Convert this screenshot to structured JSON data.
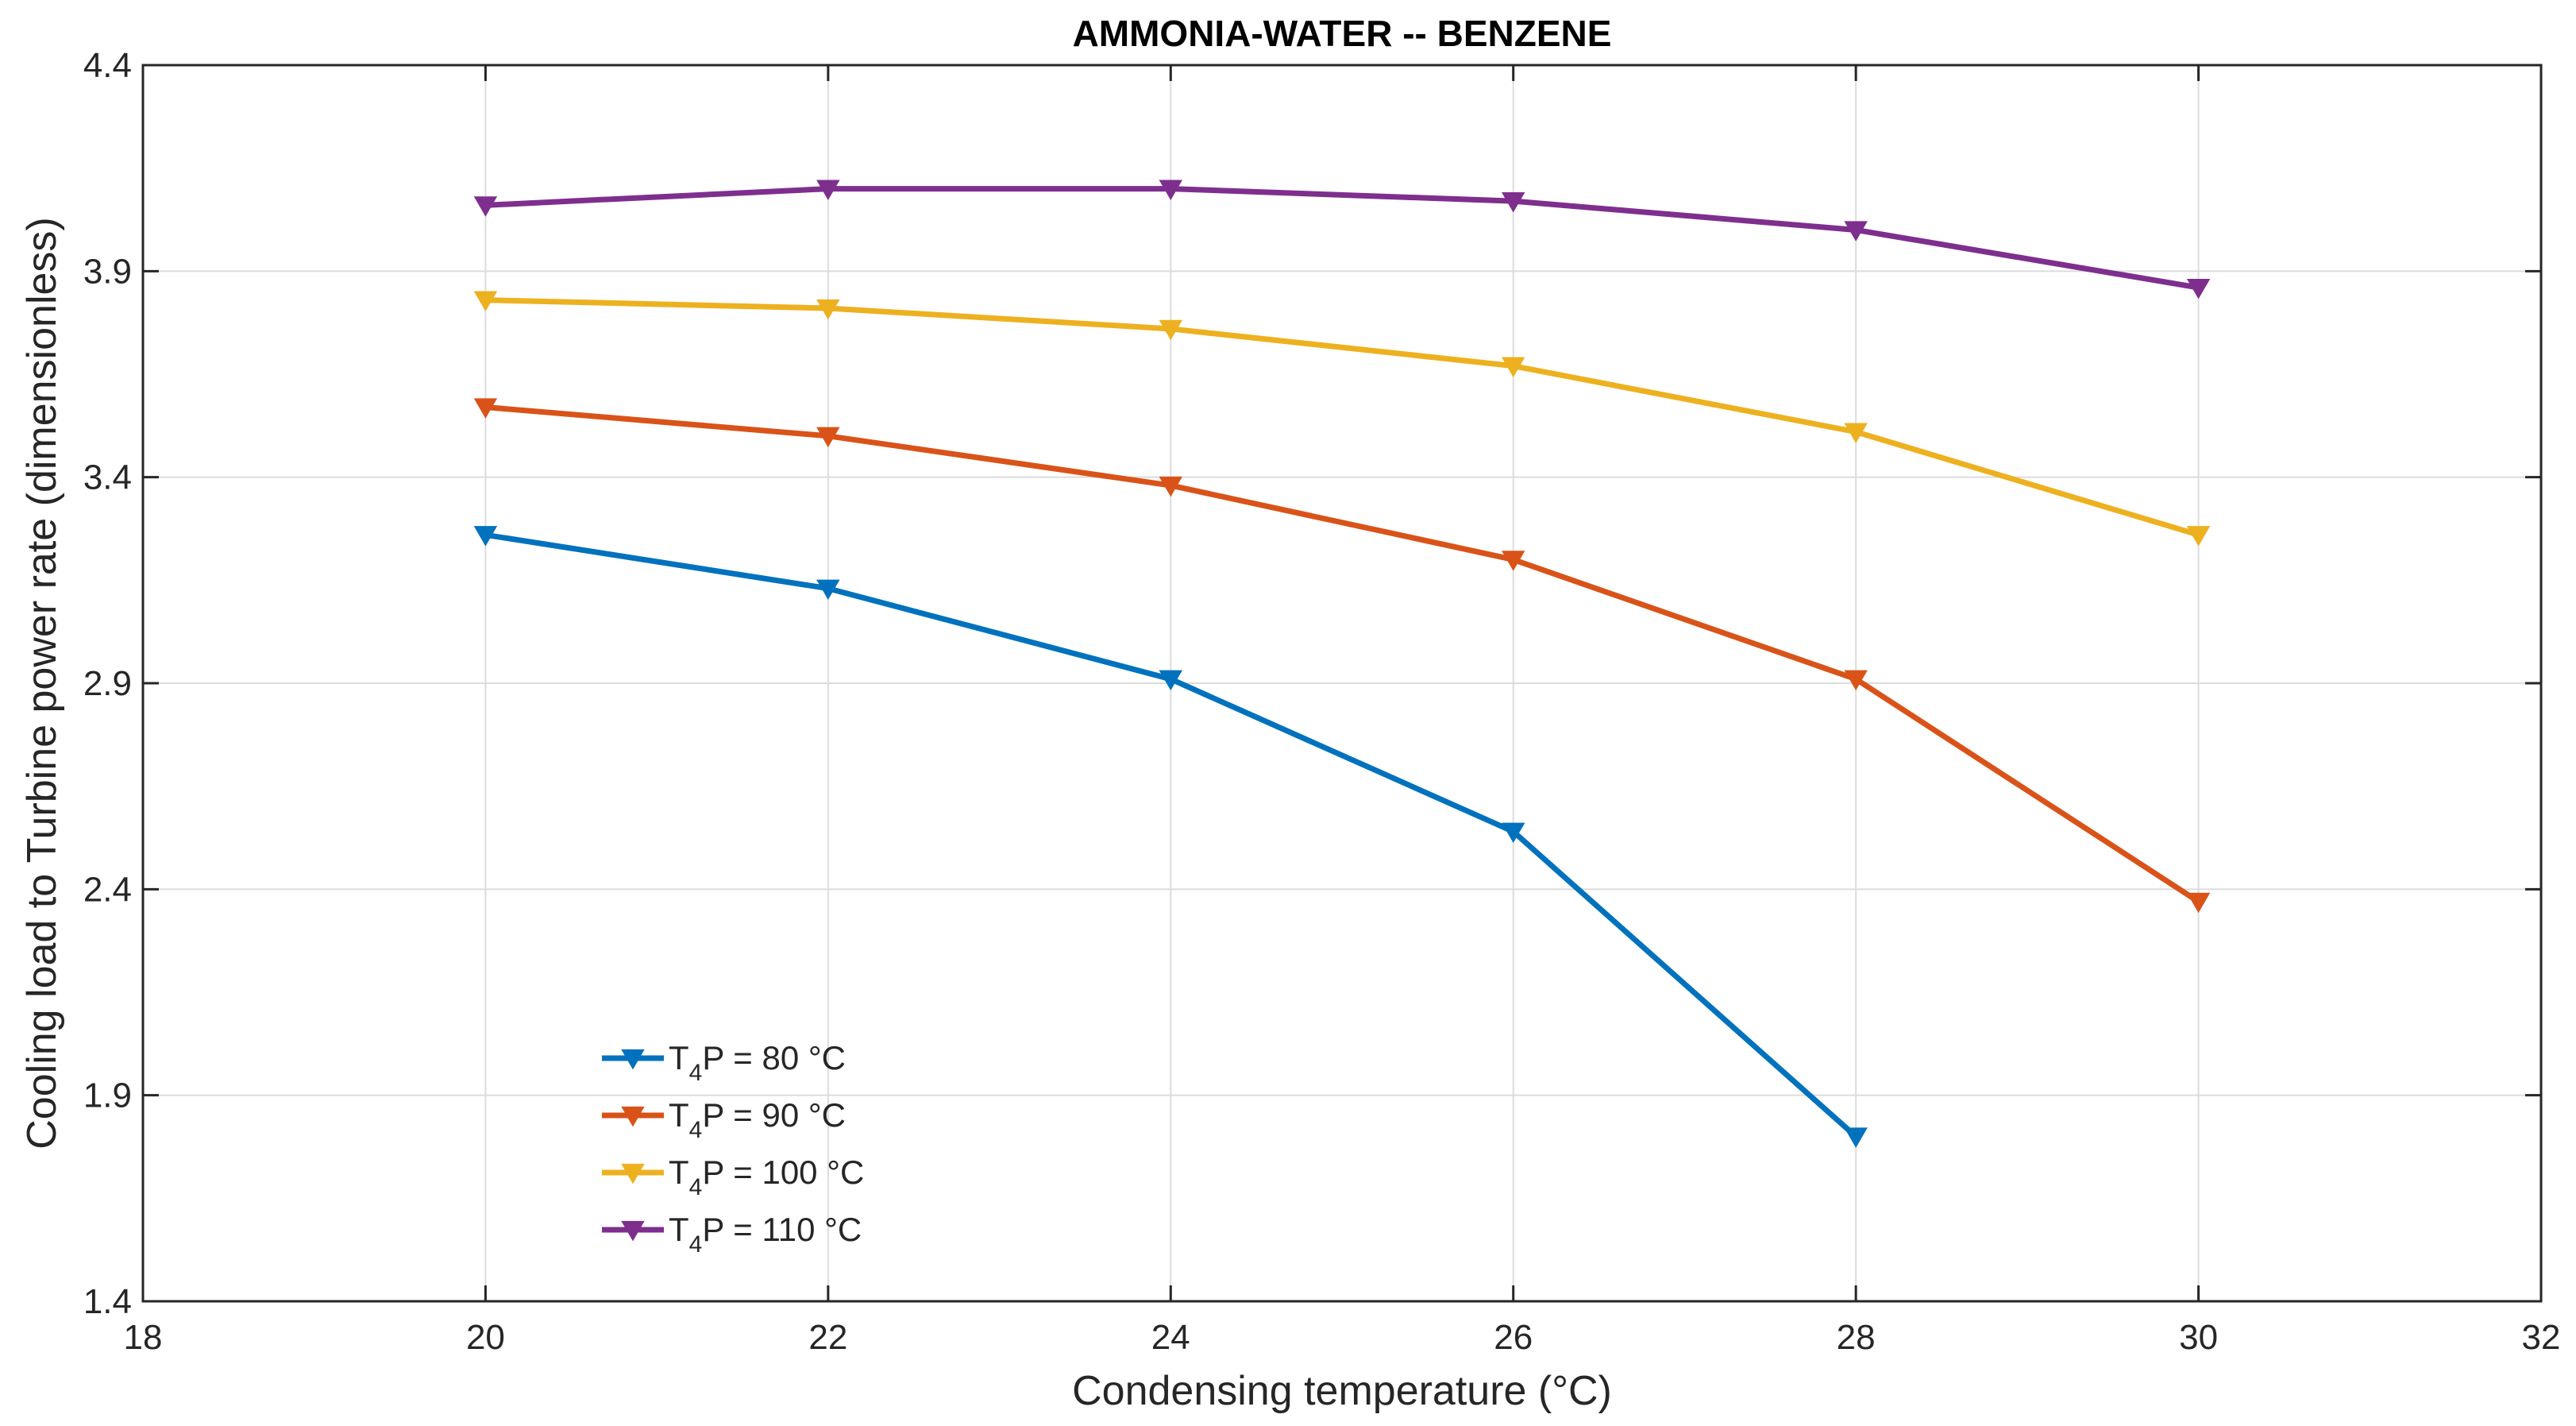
{
  "chart_data": {
    "type": "line",
    "title": "AMMONIA-WATER -- BENZENE",
    "xlabel": "Condensing temperature (°C)",
    "ylabel": "Cooling load to Turbine power rate (dimensionless)",
    "xlim": [
      18,
      32
    ],
    "ylim": [
      1.4,
      4.4
    ],
    "xticks": [
      18,
      20,
      22,
      24,
      26,
      28,
      30,
      32
    ],
    "yticks": [
      1.4,
      1.9,
      2.4,
      2.9,
      3.4,
      3.9,
      4.4
    ],
    "xtick_labels": [
      "18",
      "20",
      "22",
      "24",
      "26",
      "28",
      "30",
      "32"
    ],
    "ytick_labels": [
      "1.4",
      "1.9",
      "2.4",
      "2.9",
      "3.4",
      "3.9",
      "4.4"
    ],
    "grid": true,
    "legend_position": "bottom-left",
    "marker": "down-triangle",
    "series": [
      {
        "name": "T4P = 80 °C",
        "legend_main": "T",
        "legend_sub": "4",
        "legend_rest": "P = 80 °C",
        "color": "#0072BD",
        "x": [
          20,
          22,
          24,
          26,
          28
        ],
        "y": [
          3.26,
          3.13,
          2.91,
          2.54,
          1.8
        ]
      },
      {
        "name": "T4P = 90 °C",
        "legend_main": "T",
        "legend_sub": "4",
        "legend_rest": "P = 90 °C",
        "color": "#D95319",
        "x": [
          20,
          22,
          24,
          26,
          28,
          30
        ],
        "y": [
          3.57,
          3.5,
          3.38,
          3.2,
          2.91,
          2.37
        ]
      },
      {
        "name": "T4P = 100 °C",
        "legend_main": "T",
        "legend_sub": "4",
        "legend_rest": "P = 100 °C",
        "color": "#EDB120",
        "x": [
          20,
          22,
          24,
          26,
          28,
          30
        ],
        "y": [
          3.83,
          3.81,
          3.76,
          3.67,
          3.51,
          3.26
        ]
      },
      {
        "name": "T4P = 110 °C",
        "legend_main": "T",
        "legend_sub": "4",
        "legend_rest": "P = 110 °C",
        "color": "#7E2F8E",
        "x": [
          20,
          22,
          24,
          26,
          28,
          30
        ],
        "y": [
          4.06,
          4.1,
          4.1,
          4.07,
          4.0,
          3.86
        ]
      }
    ]
  }
}
